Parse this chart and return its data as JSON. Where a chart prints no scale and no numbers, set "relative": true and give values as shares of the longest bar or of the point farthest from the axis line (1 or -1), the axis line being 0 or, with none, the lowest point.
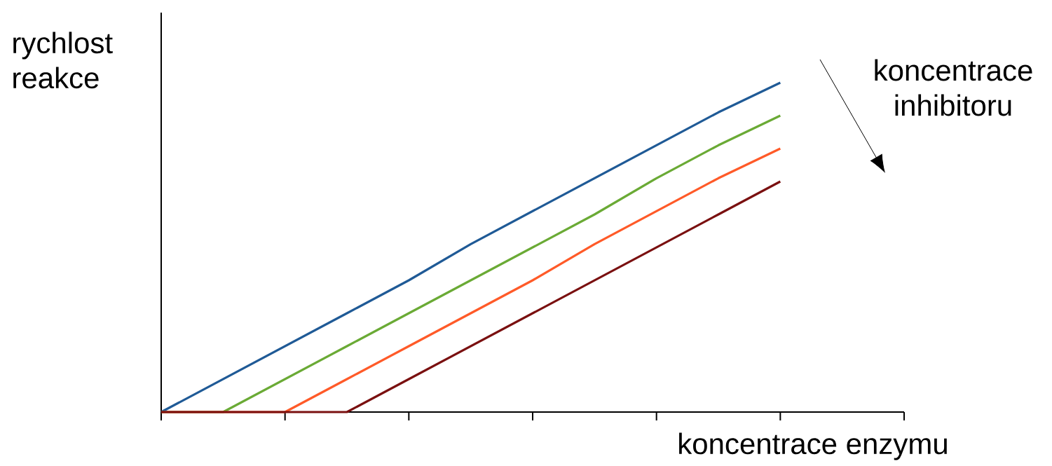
{
  "chart_data": {
    "type": "line",
    "relative": true,
    "xlabel": "koncentrace enzymu",
    "ylabel": "rychlost reakce",
    "annotations": [
      "koncentrace inhibitoru"
    ],
    "marker": "none",
    "line_style": "solid",
    "categories": [
      null,
      null,
      null,
      null,
      null,
      null,
      null,
      null,
      null,
      null,
      null,
      null,
      null
    ],
    "series": [
      {
        "color": "#1f5a96",
        "values": [
          0,
          0.1,
          0.2,
          0.3,
          0.4,
          0.51,
          0.61,
          0.71,
          0.81,
          0.91,
          1.0,
          null,
          null
        ]
      },
      {
        "color": "#6aaa35",
        "values": [
          0,
          0,
          0.1,
          0.2,
          0.3,
          0.4,
          0.5,
          0.6,
          0.71,
          0.81,
          0.9,
          null,
          null
        ]
      },
      {
        "color": "#ff5a28",
        "values": [
          0,
          0,
          0,
          0.1,
          0.2,
          0.3,
          0.4,
          0.51,
          0.61,
          0.71,
          0.8,
          null,
          null
        ]
      },
      {
        "color": "#7a1010",
        "values": [
          0,
          0,
          0,
          0,
          0.1,
          0.2,
          0.3,
          0.4,
          0.5,
          0.6,
          0.7,
          null,
          null
        ]
      }
    ]
  }
}
